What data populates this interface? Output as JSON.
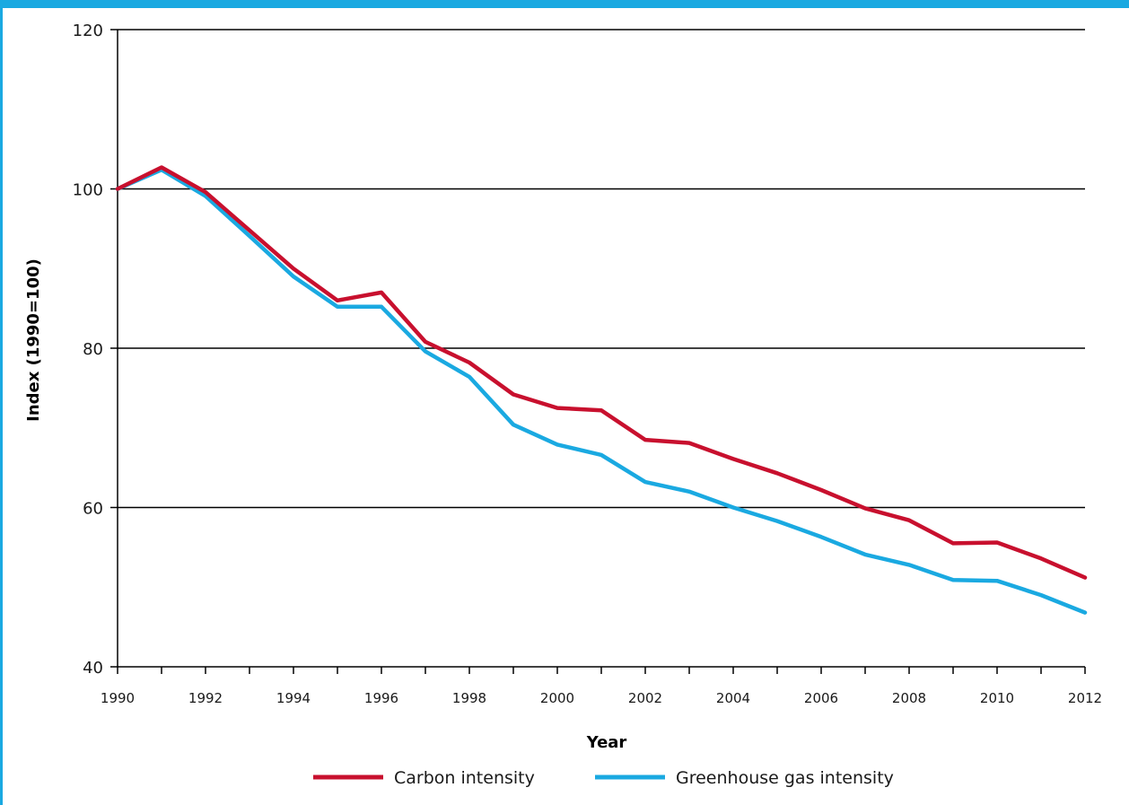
{
  "chart_data": {
    "type": "line",
    "title": "",
    "xlabel": "Year",
    "ylabel": "Index (1990=100)",
    "xlim": [
      1990,
      2012
    ],
    "ylim": [
      40,
      120
    ],
    "x_ticks": [
      1990,
      1992,
      1994,
      1996,
      1998,
      2000,
      2002,
      2004,
      2006,
      2008,
      2010,
      2012
    ],
    "y_ticks": [
      40,
      60,
      80,
      100,
      120
    ],
    "grid": "horizontal",
    "legend_position": "bottom",
    "x": [
      1990,
      1991,
      1992,
      1993,
      1994,
      1995,
      1996,
      1997,
      1998,
      1999,
      2000,
      2001,
      2002,
      2003,
      2004,
      2005,
      2006,
      2007,
      2008,
      2009,
      2010,
      2011,
      2012
    ],
    "series": [
      {
        "name": "Carbon intensity",
        "color": "#c8102e",
        "values": [
          100,
          102.7,
          99.6,
          94.8,
          90,
          86,
          87,
          80.8,
          78.2,
          74.2,
          72.5,
          72.2,
          68.5,
          68.1,
          66.1,
          64.3,
          62.2,
          59.9,
          58.4,
          55.5,
          55.6,
          53.6,
          51.2
        ]
      },
      {
        "name": "Greenhouse gas intensity",
        "color": "#1aa9e1",
        "values": [
          100,
          102.4,
          99.1,
          94.1,
          89,
          85.2,
          85.2,
          79.6,
          76.4,
          70.4,
          67.9,
          66.6,
          63.2,
          62,
          60,
          58.3,
          56.3,
          54.1,
          52.8,
          50.9,
          50.8,
          49,
          46.8
        ]
      }
    ]
  }
}
